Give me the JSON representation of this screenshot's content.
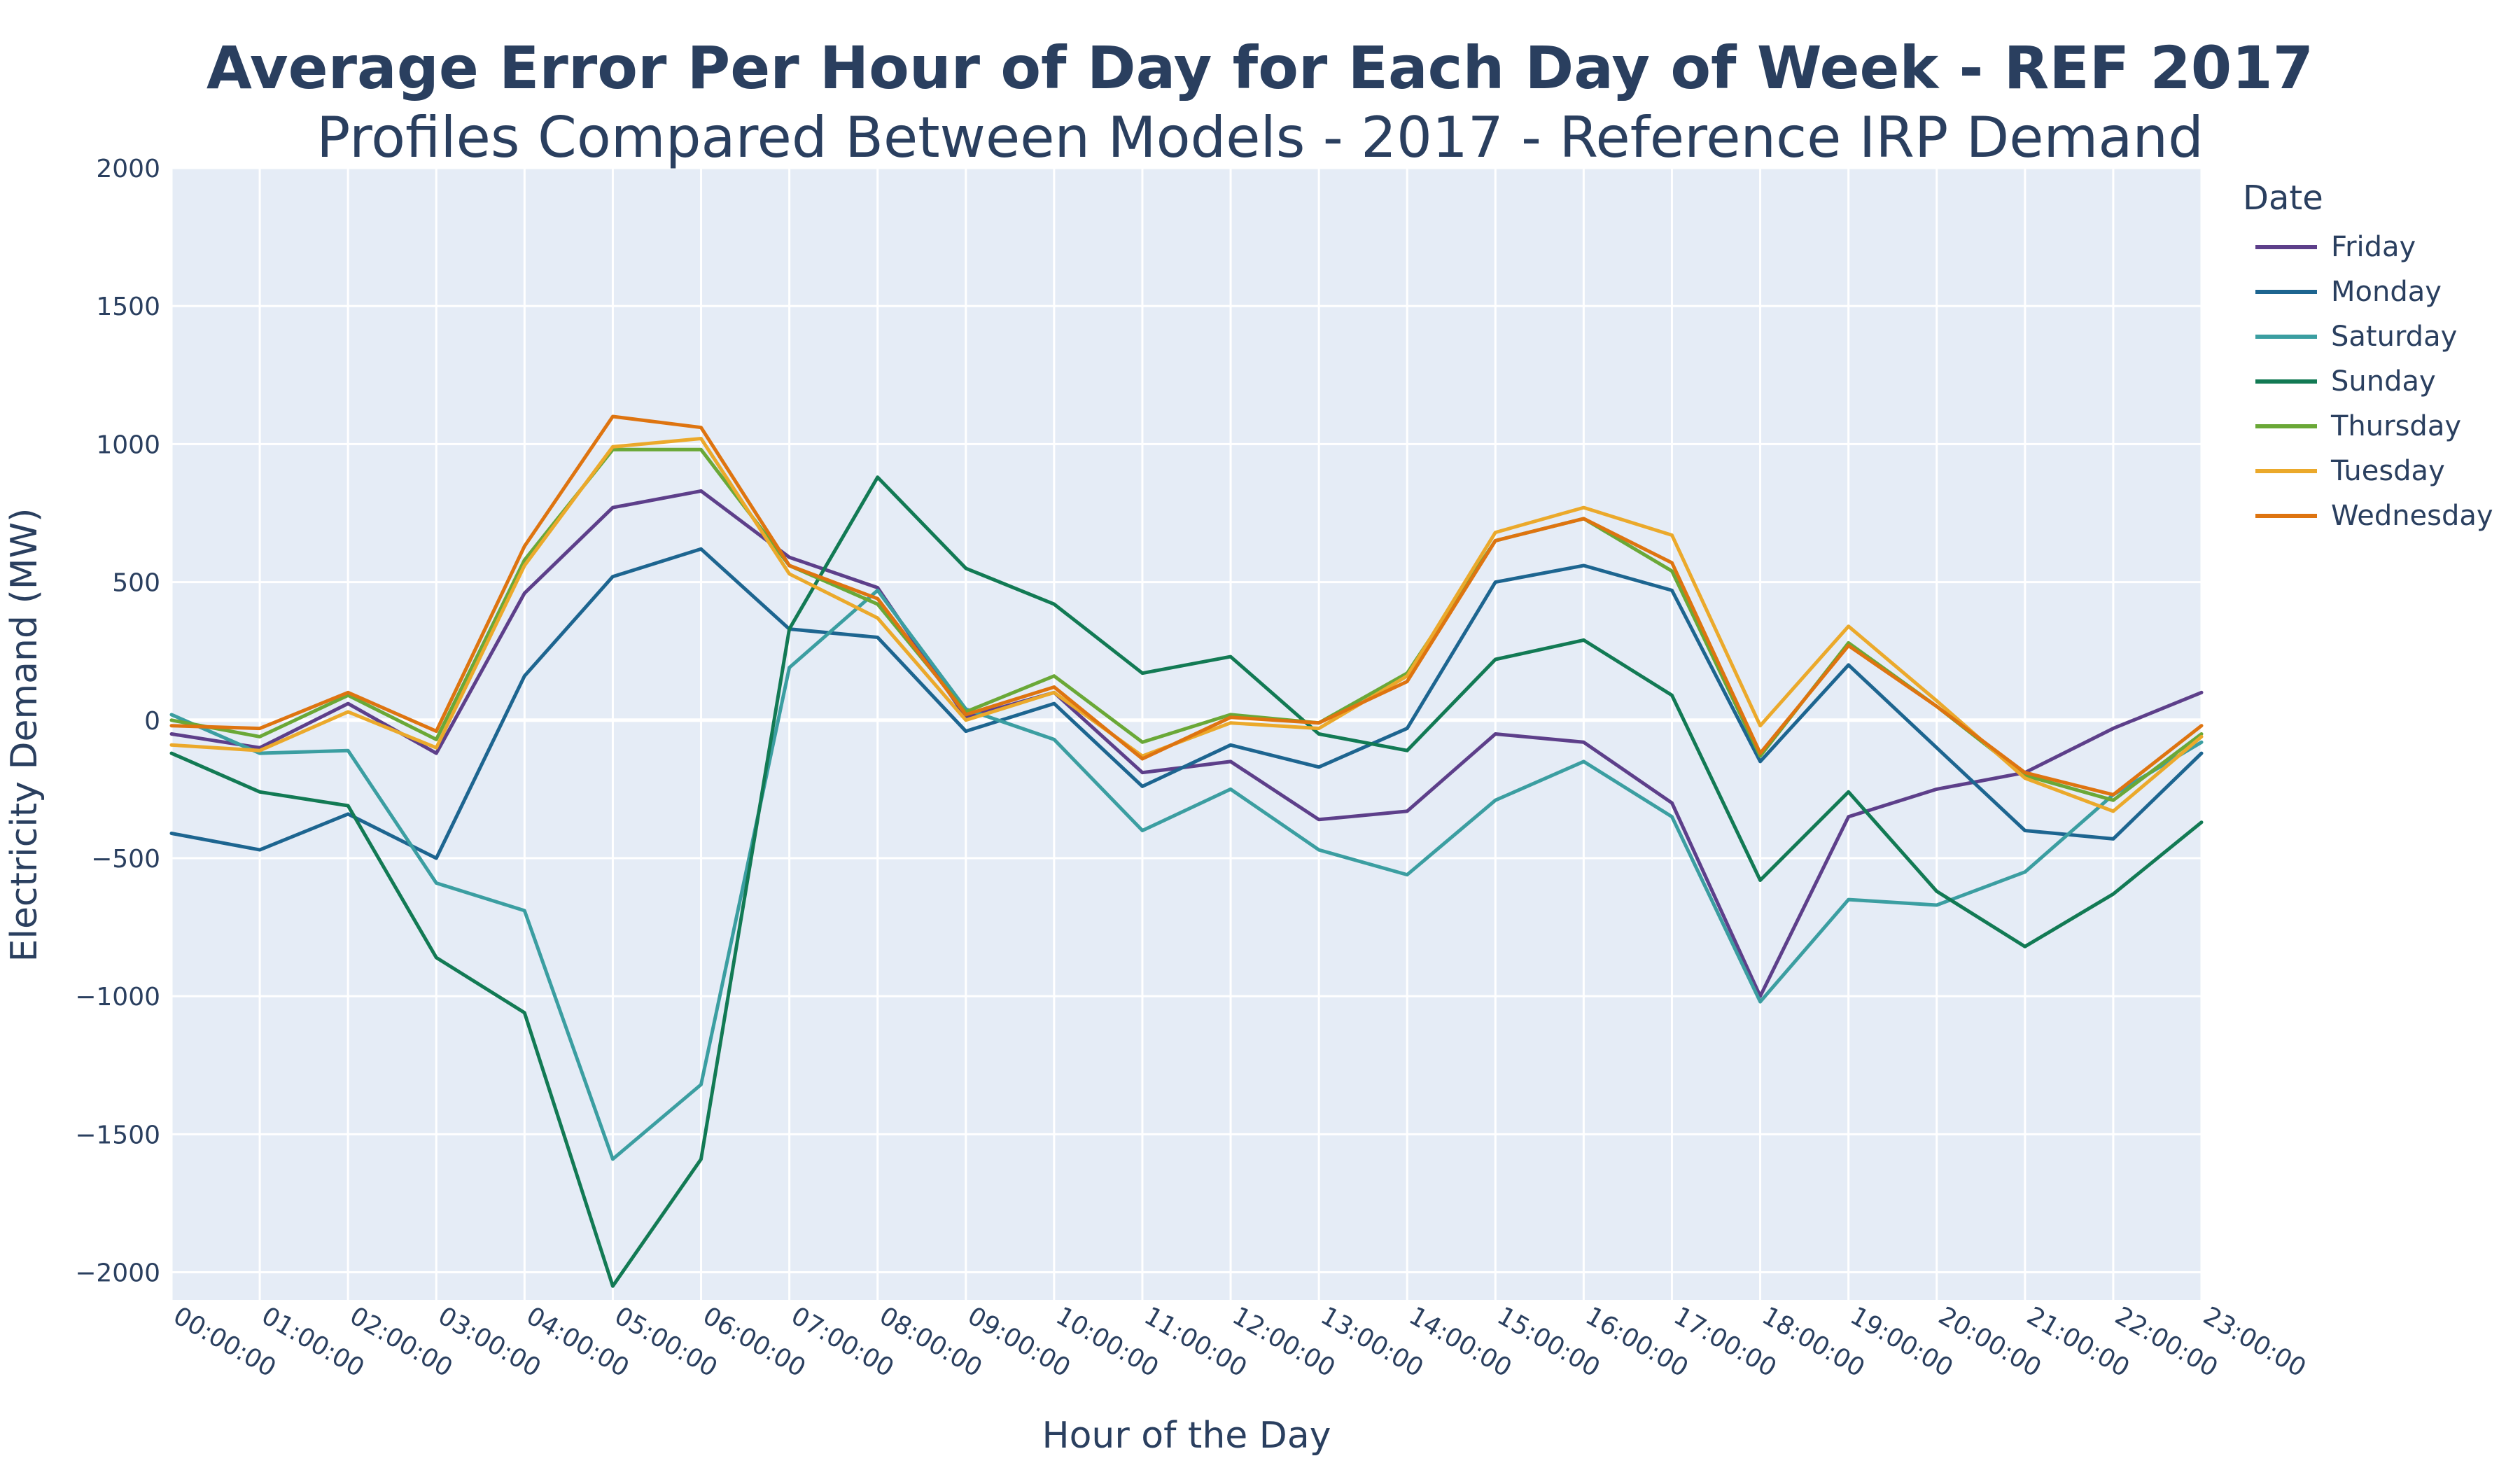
{
  "chart_data": {
    "type": "line",
    "title": "Average Error Per Hour of Day for Each Day of Week - REF 2017",
    "subtitle": "Profiles Compared Between Models - 2017 - Reference IRP Demand",
    "xlabel": "Hour of the Day",
    "ylabel": "Electricity Demand (MW)",
    "legend_title": "Date",
    "legend_position": "right",
    "ylim": [
      -2100,
      2000
    ],
    "yticks": [
      2000,
      1500,
      1000,
      500,
      0,
      -500,
      -1000,
      -1500,
      -2000
    ],
    "ytick_labels": [
      "2000",
      "1500",
      "1000",
      "500",
      "0",
      "−500",
      "−1000",
      "−1500",
      "−2000"
    ],
    "categories": [
      "00:00:00",
      "01:00:00",
      "02:00:00",
      "03:00:00",
      "04:00:00",
      "05:00:00",
      "06:00:00",
      "07:00:00",
      "08:00:00",
      "09:00:00",
      "10:00:00",
      "11:00:00",
      "12:00:00",
      "13:00:00",
      "14:00:00",
      "15:00:00",
      "16:00:00",
      "17:00:00",
      "18:00:00",
      "19:00:00",
      "20:00:00",
      "21:00:00",
      "22:00:00",
      "23:00:00"
    ],
    "grid": true,
    "series": [
      {
        "name": "Friday",
        "color": "#5d3f8a",
        "values": [
          -50,
          -100,
          60,
          -120,
          460,
          770,
          830,
          590,
          480,
          10,
          100,
          -190,
          -150,
          -360,
          -330,
          -50,
          -80,
          -300,
          -1000,
          -350,
          -250,
          -190,
          -30,
          100
        ]
      },
      {
        "name": "Monday",
        "color": "#1d6590",
        "values": [
          -410,
          -470,
          -340,
          -500,
          160,
          520,
          620,
          330,
          300,
          -40,
          60,
          -240,
          -90,
          -170,
          -30,
          500,
          560,
          470,
          -150,
          200,
          -100,
          -400,
          -430,
          -120
        ]
      },
      {
        "name": "Saturday",
        "color": "#3b9ea1",
        "values": [
          20,
          -120,
          -110,
          -590,
          -690,
          -1590,
          -1320,
          190,
          470,
          40,
          -70,
          -400,
          -250,
          -470,
          -560,
          -290,
          -150,
          -350,
          -1020,
          -650,
          -670,
          -550,
          -270,
          -80
        ]
      },
      {
        "name": "Sunday",
        "color": "#127a54",
        "values": [
          -120,
          -260,
          -310,
          -860,
          -1060,
          -2050,
          -1590,
          330,
          880,
          550,
          420,
          170,
          230,
          -50,
          -110,
          220,
          290,
          90,
          -580,
          -260,
          -620,
          -820,
          -630,
          -370
        ]
      },
      {
        "name": "Thursday",
        "color": "#6aa837",
        "values": [
          0,
          -60,
          90,
          -70,
          580,
          980,
          980,
          560,
          420,
          30,
          160,
          -80,
          20,
          -10,
          170,
          650,
          730,
          540,
          -130,
          280,
          50,
          -200,
          -290,
          -50
        ]
      },
      {
        "name": "Tuesday",
        "color": "#eba92b",
        "values": [
          -90,
          -110,
          30,
          -100,
          560,
          990,
          1020,
          530,
          370,
          0,
          100,
          -130,
          -10,
          -30,
          160,
          680,
          770,
          670,
          -20,
          340,
          70,
          -210,
          -330,
          -60
        ]
      },
      {
        "name": "Wednesday",
        "color": "#de7410",
        "values": [
          -20,
          -30,
          100,
          -40,
          630,
          1100,
          1060,
          560,
          440,
          20,
          120,
          -140,
          10,
          -10,
          140,
          650,
          730,
          570,
          -120,
          270,
          50,
          -190,
          -270,
          -20
        ]
      }
    ]
  }
}
